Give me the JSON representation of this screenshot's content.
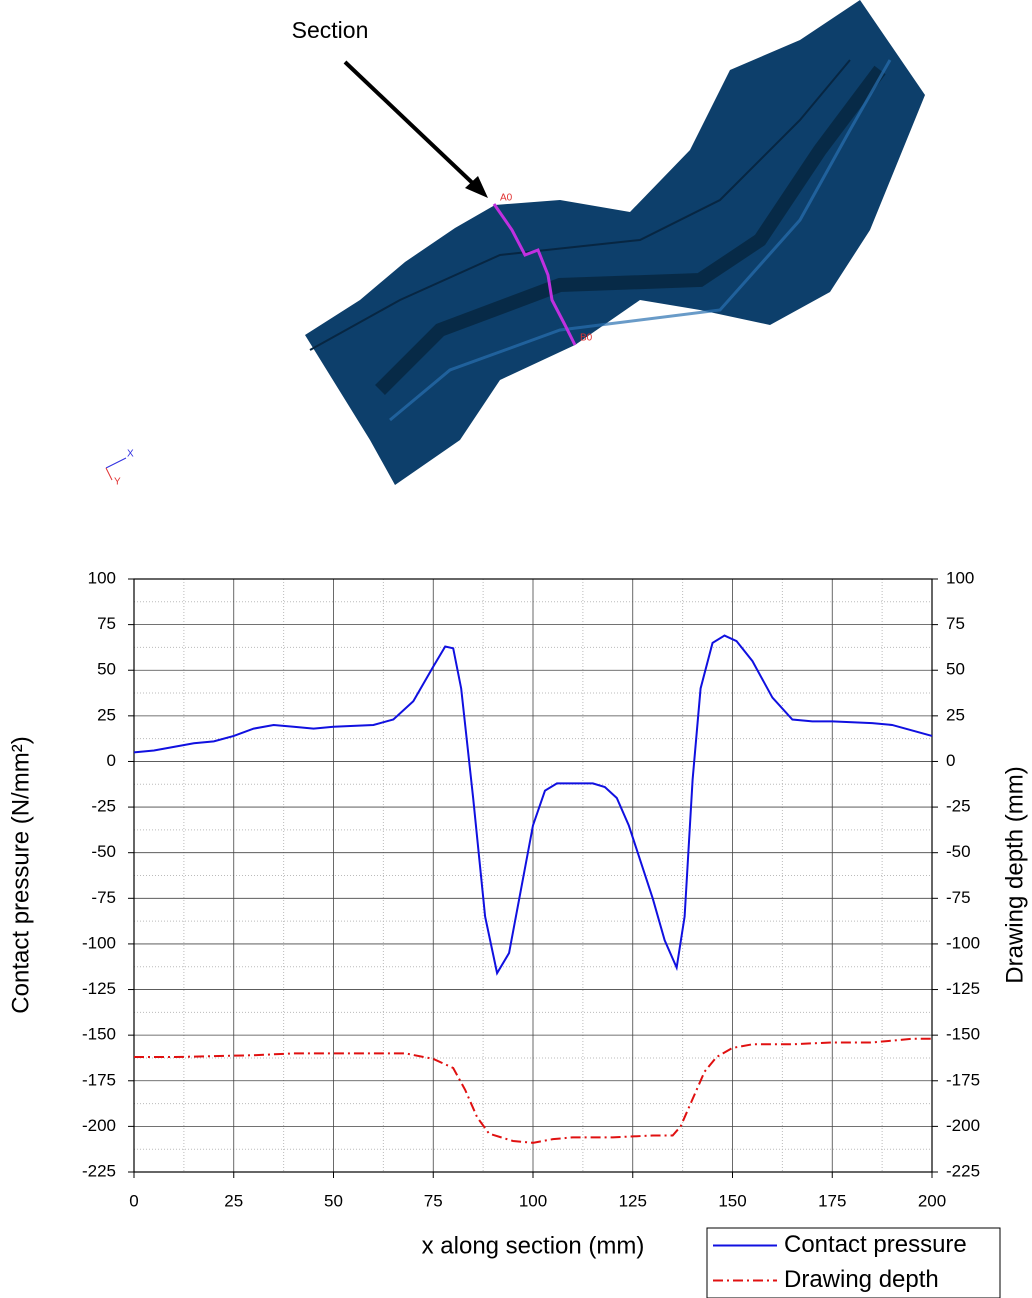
{
  "figure": {
    "annotation": "Section",
    "start_label": "A0",
    "end_label": "B0",
    "axis_x": "X",
    "axis_y": "Y"
  },
  "chart_data": {
    "type": "line",
    "xlabel": "x along section (mm)",
    "ylabel": "Contact pressure (N/mm²)",
    "y2label": "Drawing depth (mm)",
    "xlim": [
      0,
      200
    ],
    "xticks": [
      0,
      25,
      50,
      75,
      100,
      125,
      150,
      175,
      200
    ],
    "ylim": [
      -225,
      100
    ],
    "yticks": [
      -225,
      -200,
      -175,
      -150,
      -125,
      -100,
      -75,
      -50,
      -25,
      0,
      25,
      50,
      75,
      100
    ],
    "y2lim": [
      -225,
      100
    ],
    "y2ticks": [
      -225,
      -200,
      -175,
      -150,
      -125,
      -100,
      -75,
      -50,
      -25,
      0,
      25,
      50,
      75,
      100
    ],
    "grid": true,
    "minor_grid": true,
    "legend": "lower right",
    "series": [
      {
        "name": "Contact pressure",
        "color": "#1010e0",
        "line_style": "solid",
        "x": [
          0,
          5,
          10,
          15,
          20,
          25,
          30,
          35,
          40,
          45,
          50,
          55,
          60,
          65,
          70,
          75,
          78,
          80,
          82,
          85,
          88,
          91,
          94,
          97,
          100,
          103,
          106,
          110,
          115,
          118,
          121,
          124,
          127,
          130,
          133,
          136,
          138,
          140,
          142,
          145,
          148,
          151,
          155,
          160,
          165,
          170,
          175,
          180,
          185,
          190,
          195,
          200
        ],
        "values": [
          5,
          6,
          8,
          10,
          11,
          14,
          18,
          20,
          19,
          18,
          19,
          19.5,
          20,
          23,
          33,
          52,
          63,
          62,
          40,
          -20,
          -85,
          -116,
          -105,
          -70,
          -35,
          -16,
          -12,
          -12,
          -12,
          -14,
          -20,
          -35,
          -55,
          -75,
          -98,
          -113,
          -85,
          -10,
          40,
          65,
          69,
          66,
          55,
          35,
          23,
          22,
          22,
          21.5,
          21,
          20,
          17,
          14
        ]
      },
      {
        "name": "Drawing depth",
        "color": "#e01010",
        "line_style": "dashdot",
        "axis": "y2",
        "x": [
          0,
          10,
          20,
          30,
          40,
          50,
          60,
          68,
          75,
          80,
          83,
          86,
          89,
          95,
          100,
          105,
          110,
          120,
          130,
          135,
          137,
          140,
          143,
          146,
          150,
          155,
          165,
          175,
          185,
          195,
          200
        ],
        "values": [
          -162,
          -162,
          -161.5,
          -161,
          -160,
          -160,
          -160,
          -160,
          -163,
          -168,
          -180,
          -195,
          -204,
          -208,
          -209,
          -207,
          -206,
          -206,
          -205,
          -205,
          -200,
          -185,
          -170,
          -162,
          -157,
          -155,
          -155,
          -154,
          -154,
          -152,
          -152
        ]
      }
    ]
  }
}
